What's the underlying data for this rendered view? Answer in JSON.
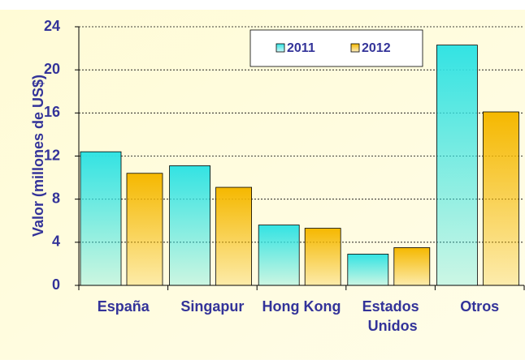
{
  "chart_data": {
    "type": "bar",
    "y_label": "Valor (millones de US$)",
    "categories": [
      "España",
      "Singapur",
      "Hong Kong",
      "Estados Unidos",
      "Otros"
    ],
    "series": [
      {
        "name": "2011",
        "color": "#33e3e3",
        "values": [
          12.4,
          11.1,
          5.6,
          2.9,
          22.3
        ]
      },
      {
        "name": "2012",
        "color": "#f5b800",
        "values": [
          10.4,
          9.1,
          5.3,
          3.5,
          16.1
        ]
      }
    ],
    "ylim": [
      0,
      24
    ],
    "yticks": [
      0,
      4,
      8,
      12,
      16,
      20,
      24
    ],
    "grid": true,
    "legend": "top-right"
  }
}
